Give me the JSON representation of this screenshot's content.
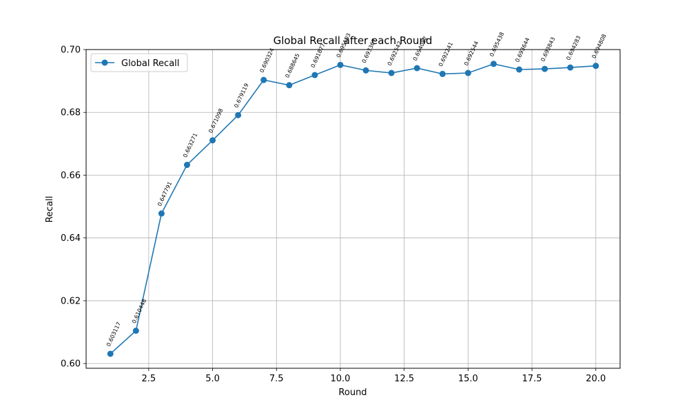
{
  "chart_data": {
    "type": "line",
    "title": "Global Recall after each Round",
    "xlabel": "Round",
    "ylabel": "Recall",
    "xlim": [
      0.05,
      20.95
    ],
    "ylim": [
      0.5985,
      0.7
    ],
    "xticks": [
      2.5,
      5.0,
      7.5,
      10.0,
      12.5,
      15.0,
      17.5,
      20.0
    ],
    "xtick_labels": [
      "2.5",
      "5.0",
      "7.5",
      "10.0",
      "12.5",
      "15.0",
      "17.5",
      "20.0"
    ],
    "yticks": [
      0.6,
      0.62,
      0.64,
      0.66,
      0.68,
      0.7
    ],
    "ytick_labels": [
      "0.60",
      "0.62",
      "0.64",
      "0.66",
      "0.68",
      "0.70"
    ],
    "grid": true,
    "legend_position": "top-left",
    "series": [
      {
        "name": "Global Recall",
        "color": "#1f77b4",
        "marker": "circle",
        "x": [
          1,
          2,
          3,
          4,
          5,
          6,
          7,
          8,
          9,
          10,
          11,
          12,
          13,
          14,
          15,
          16,
          17,
          18,
          19,
          20
        ],
        "y": [
          0.603117,
          0.610448,
          0.647791,
          0.663271,
          0.671098,
          0.679119,
          0.690324,
          0.688645,
          0.691877,
          0.695103,
          0.693367,
          0.692542,
          0.694082,
          0.692241,
          0.692544,
          0.695438,
          0.693644,
          0.693843,
          0.694283,
          0.694808
        ],
        "labels": [
          "0.603117",
          "0.610448",
          "0.647791",
          "0.663271",
          "0.671098",
          "0.679119",
          "0.690324",
          "0.688645",
          "0.691877",
          "0.695103",
          "0.693367",
          "0.692542",
          "0.694082",
          "0.692241",
          "0.692544",
          "0.695438",
          "0.693644",
          "0.693843",
          "0.694283",
          "0.694808"
        ]
      }
    ]
  }
}
